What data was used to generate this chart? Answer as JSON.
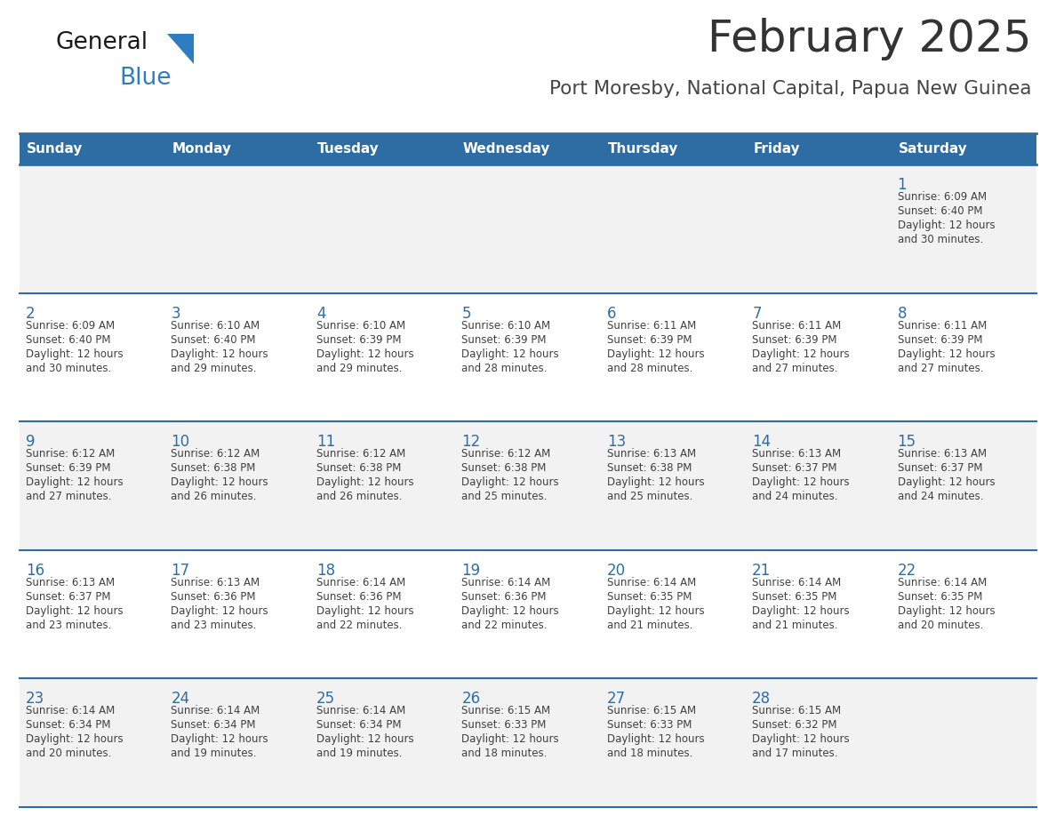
{
  "title": "February 2025",
  "subtitle": "Port Moresby, National Capital, Papua New Guinea",
  "days_of_week": [
    "Sunday",
    "Monday",
    "Tuesday",
    "Wednesday",
    "Thursday",
    "Friday",
    "Saturday"
  ],
  "header_bg": "#2E6DA4",
  "header_text": "#FFFFFF",
  "row_bg_0": "#F2F2F2",
  "row_bg_1": "#FFFFFF",
  "row_bg_2": "#F2F2F2",
  "row_bg_3": "#FFFFFF",
  "row_bg_4": "#F2F2F2",
  "divider_color": "#2E6DA4",
  "day_num_color": "#2E6DA4",
  "cell_text_color": "#404040",
  "title_color": "#333333",
  "subtitle_color": "#444444",
  "logo_general_color": "#1a1a1a",
  "logo_blue_color": "#2E7DC0",
  "calendar_data": [
    {
      "day": 1,
      "col": 6,
      "row": 0,
      "sunrise": "6:09 AM",
      "sunset": "6:40 PM",
      "daylight_mins": "30"
    },
    {
      "day": 2,
      "col": 0,
      "row": 1,
      "sunrise": "6:09 AM",
      "sunset": "6:40 PM",
      "daylight_mins": "30"
    },
    {
      "day": 3,
      "col": 1,
      "row": 1,
      "sunrise": "6:10 AM",
      "sunset": "6:40 PM",
      "daylight_mins": "29"
    },
    {
      "day": 4,
      "col": 2,
      "row": 1,
      "sunrise": "6:10 AM",
      "sunset": "6:39 PM",
      "daylight_mins": "29"
    },
    {
      "day": 5,
      "col": 3,
      "row": 1,
      "sunrise": "6:10 AM",
      "sunset": "6:39 PM",
      "daylight_mins": "28"
    },
    {
      "day": 6,
      "col": 4,
      "row": 1,
      "sunrise": "6:11 AM",
      "sunset": "6:39 PM",
      "daylight_mins": "28"
    },
    {
      "day": 7,
      "col": 5,
      "row": 1,
      "sunrise": "6:11 AM",
      "sunset": "6:39 PM",
      "daylight_mins": "27"
    },
    {
      "day": 8,
      "col": 6,
      "row": 1,
      "sunrise": "6:11 AM",
      "sunset": "6:39 PM",
      "daylight_mins": "27"
    },
    {
      "day": 9,
      "col": 0,
      "row": 2,
      "sunrise": "6:12 AM",
      "sunset": "6:39 PM",
      "daylight_mins": "27"
    },
    {
      "day": 10,
      "col": 1,
      "row": 2,
      "sunrise": "6:12 AM",
      "sunset": "6:38 PM",
      "daylight_mins": "26"
    },
    {
      "day": 11,
      "col": 2,
      "row": 2,
      "sunrise": "6:12 AM",
      "sunset": "6:38 PM",
      "daylight_mins": "26"
    },
    {
      "day": 12,
      "col": 3,
      "row": 2,
      "sunrise": "6:12 AM",
      "sunset": "6:38 PM",
      "daylight_mins": "25"
    },
    {
      "day": 13,
      "col": 4,
      "row": 2,
      "sunrise": "6:13 AM",
      "sunset": "6:38 PM",
      "daylight_mins": "25"
    },
    {
      "day": 14,
      "col": 5,
      "row": 2,
      "sunrise": "6:13 AM",
      "sunset": "6:37 PM",
      "daylight_mins": "24"
    },
    {
      "day": 15,
      "col": 6,
      "row": 2,
      "sunrise": "6:13 AM",
      "sunset": "6:37 PM",
      "daylight_mins": "24"
    },
    {
      "day": 16,
      "col": 0,
      "row": 3,
      "sunrise": "6:13 AM",
      "sunset": "6:37 PM",
      "daylight_mins": "23"
    },
    {
      "day": 17,
      "col": 1,
      "row": 3,
      "sunrise": "6:13 AM",
      "sunset": "6:36 PM",
      "daylight_mins": "23"
    },
    {
      "day": 18,
      "col": 2,
      "row": 3,
      "sunrise": "6:14 AM",
      "sunset": "6:36 PM",
      "daylight_mins": "22"
    },
    {
      "day": 19,
      "col": 3,
      "row": 3,
      "sunrise": "6:14 AM",
      "sunset": "6:36 PM",
      "daylight_mins": "22"
    },
    {
      "day": 20,
      "col": 4,
      "row": 3,
      "sunrise": "6:14 AM",
      "sunset": "6:35 PM",
      "daylight_mins": "21"
    },
    {
      "day": 21,
      "col": 5,
      "row": 3,
      "sunrise": "6:14 AM",
      "sunset": "6:35 PM",
      "daylight_mins": "21"
    },
    {
      "day": 22,
      "col": 6,
      "row": 3,
      "sunrise": "6:14 AM",
      "sunset": "6:35 PM",
      "daylight_mins": "20"
    },
    {
      "day": 23,
      "col": 0,
      "row": 4,
      "sunrise": "6:14 AM",
      "sunset": "6:34 PM",
      "daylight_mins": "20"
    },
    {
      "day": 24,
      "col": 1,
      "row": 4,
      "sunrise": "6:14 AM",
      "sunset": "6:34 PM",
      "daylight_mins": "19"
    },
    {
      "day": 25,
      "col": 2,
      "row": 4,
      "sunrise": "6:14 AM",
      "sunset": "6:34 PM",
      "daylight_mins": "19"
    },
    {
      "day": 26,
      "col": 3,
      "row": 4,
      "sunrise": "6:15 AM",
      "sunset": "6:33 PM",
      "daylight_mins": "18"
    },
    {
      "day": 27,
      "col": 4,
      "row": 4,
      "sunrise": "6:15 AM",
      "sunset": "6:33 PM",
      "daylight_mins": "18"
    },
    {
      "day": 28,
      "col": 5,
      "row": 4,
      "sunrise": "6:15 AM",
      "sunset": "6:32 PM",
      "daylight_mins": "17"
    }
  ]
}
